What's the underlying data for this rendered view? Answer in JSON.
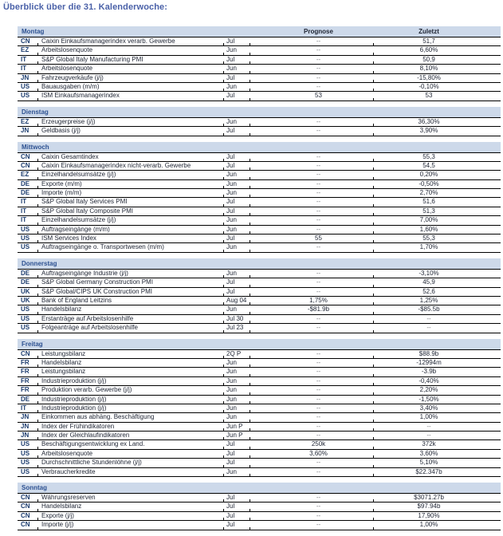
{
  "page_title": "Überblick über die 31. Kalenderwoche:",
  "colors": {
    "title-text": "#4a61a8",
    "band-bg": "#cdd9ea",
    "day-text": "#2d5191",
    "row-text": "#1e2433",
    "code-text": "#1c3c6e",
    "line": "#000000",
    "dash-text": "#76787c"
  },
  "table": {
    "empty_value": "--",
    "columns": {
      "prognose": "Prognose",
      "zuletzt": "Zuletzt"
    },
    "sections": [
      {
        "day": "Montag",
        "rows": [
          {
            "country": "CN",
            "indicator": "Caixin Einkaufsmanagerindex verarb. Gewerbe",
            "period": "Jul",
            "prognose": "--",
            "zuletzt": "51,7"
          },
          {
            "country": "EZ",
            "indicator": "Arbeitslosenquote",
            "period": "Jun",
            "prognose": "--",
            "zuletzt": "6,60%"
          },
          {
            "country": "IT",
            "indicator": "S&P Global Italy Manufacturing PMI",
            "period": "Jul",
            "prognose": "--",
            "zuletzt": "50,9"
          },
          {
            "country": "IT",
            "indicator": "Arbeitslosenquote",
            "period": "Jun",
            "prognose": "--",
            "zuletzt": "8,10%"
          },
          {
            "country": "JN",
            "indicator": "Fahrzeugverkäufe (j/j)",
            "period": "Jul",
            "prognose": "--",
            "zuletzt": "-15,80%"
          },
          {
            "country": "US",
            "indicator": "Bauausgaben (m/m)",
            "period": "Jun",
            "prognose": "--",
            "zuletzt": "-0,10%"
          },
          {
            "country": "US",
            "indicator": "ISM Einkaufsmanagerindex",
            "period": "Jul",
            "prognose": "53",
            "zuletzt": "53"
          }
        ]
      },
      {
        "day": "Dienstag",
        "rows": [
          {
            "country": "EZ",
            "indicator": "Erzeugerpreise (j/j)",
            "period": "Jun",
            "prognose": "--",
            "zuletzt": "36,30%"
          },
          {
            "country": "JN",
            "indicator": "Geldbasis (j/j)",
            "period": "Jul",
            "prognose": "--",
            "zuletzt": "3,90%"
          }
        ]
      },
      {
        "day": "Mittwoch",
        "rows": [
          {
            "country": "CN",
            "indicator": "Caixin Gesamtindex",
            "period": "Jul",
            "prognose": "--",
            "zuletzt": "55,3"
          },
          {
            "country": "CN",
            "indicator": "Caixin Einkaufsmanagerindex nicht-verarb. Gewerbe",
            "period": "Jul",
            "prognose": "--",
            "zuletzt": "54,5"
          },
          {
            "country": "EZ",
            "indicator": "Einzelhandelsumsätze (j/j)",
            "period": "Jun",
            "prognose": "--",
            "zuletzt": "0,20%"
          },
          {
            "country": "DE",
            "indicator": "Exporte (m/m)",
            "period": "Jun",
            "prognose": "--",
            "zuletzt": "-0,50%"
          },
          {
            "country": "DE",
            "indicator": "Importe (m/m)",
            "period": "Jun",
            "prognose": "--",
            "zuletzt": "2,70%"
          },
          {
            "country": "IT",
            "indicator": "S&P Global Italy Services PMI",
            "period": "Jul",
            "prognose": "--",
            "zuletzt": "51,6"
          },
          {
            "country": "IT",
            "indicator": "S&P Global Italy Composite PMI",
            "period": "Jul",
            "prognose": "--",
            "zuletzt": "51,3"
          },
          {
            "country": "IT",
            "indicator": "Einzelhandelsumsätze (j/j)",
            "period": "Jun",
            "prognose": "--",
            "zuletzt": "7,00%"
          },
          {
            "country": "US",
            "indicator": "Auftragseingänge (m/m)",
            "period": "Jun",
            "prognose": "--",
            "zuletzt": "1,60%"
          },
          {
            "country": "US",
            "indicator": "ISM Services Index",
            "period": "Jul",
            "prognose": "55",
            "zuletzt": "55,3"
          },
          {
            "country": "US",
            "indicator": "Auftragseingänge o. Transportwesen (m/m)",
            "period": "Jun",
            "prognose": "--",
            "zuletzt": "1,70%"
          }
        ]
      },
      {
        "day": "Donnerstag",
        "rows": [
          {
            "country": "DE",
            "indicator": "Auftragseingänge Industrie (j/j)",
            "period": "Jun",
            "prognose": "--",
            "zuletzt": "-3,10%"
          },
          {
            "country": "DE",
            "indicator": "S&P Global Germany Construction PMI",
            "period": "Jul",
            "prognose": "--",
            "zuletzt": "45,9"
          },
          {
            "country": "UK",
            "indicator": "S&P Global/CIPS UK Construction PMI",
            "period": "Jul",
            "prognose": "--",
            "zuletzt": "52,6"
          },
          {
            "country": "UK",
            "indicator": "Bank of England Leitzins",
            "period": "Aug 04",
            "prognose": "1,75%",
            "zuletzt": "1,25%"
          },
          {
            "country": "US",
            "indicator": "Handelsbilanz",
            "period": "Jun",
            "prognose": "-$81.9b",
            "zuletzt": "-$85.5b"
          },
          {
            "country": "US",
            "indicator": "Erstanträge auf Arbeitslosenhilfe",
            "period": "Jul 30",
            "prognose": "--",
            "zuletzt": "--"
          },
          {
            "country": "US",
            "indicator": "Folgeanträge auf Arbeitslosenhilfe",
            "period": "Jul 23",
            "prognose": "--",
            "zuletzt": "--"
          }
        ]
      },
      {
        "day": "Freitag",
        "rows": [
          {
            "country": "CN",
            "indicator": "Leistungsbilanz",
            "period": "2Q P",
            "prognose": "--",
            "zuletzt": "$88.9b"
          },
          {
            "country": "FR",
            "indicator": "Handelsbilanz",
            "period": "Jun",
            "prognose": "--",
            "zuletzt": "-12994m"
          },
          {
            "country": "FR",
            "indicator": "Leistungsbilanz",
            "period": "Jun",
            "prognose": "--",
            "zuletzt": "-3.9b"
          },
          {
            "country": "FR",
            "indicator": "Industrieproduktion (j/j)",
            "period": "Jun",
            "prognose": "--",
            "zuletzt": "-0,40%"
          },
          {
            "country": "FR",
            "indicator": "Produktion verarb. Gewerbe (j/j)",
            "period": "Jun",
            "prognose": "--",
            "zuletzt": "2,20%"
          },
          {
            "country": "DE",
            "indicator": "Industrieproduktion (j/j)",
            "period": "Jun",
            "prognose": "--",
            "zuletzt": "-1,50%"
          },
          {
            "country": "IT",
            "indicator": "Industrieproduktion (j/j)",
            "period": "Jun",
            "prognose": "--",
            "zuletzt": "3,40%"
          },
          {
            "country": "JN",
            "indicator": "Einkommen aus abhäng. Beschäftigung",
            "period": "Jun",
            "prognose": "--",
            "zuletzt": "1,00%"
          },
          {
            "country": "JN",
            "indicator": "Index der Frühindikatoren",
            "period": "Jun P",
            "prognose": "--",
            "zuletzt": "--"
          },
          {
            "country": "JN",
            "indicator": "Index der Gleichlaufindikatoren",
            "period": "Jun P",
            "prognose": "--",
            "zuletzt": "--"
          },
          {
            "country": "US",
            "indicator": "Beschäftigungsentwicklung ex Land.",
            "period": "Jul",
            "prognose": "250k",
            "zuletzt": "372k"
          },
          {
            "country": "US",
            "indicator": "Arbeitslosenquote",
            "period": "Jul",
            "prognose": "3,60%",
            "zuletzt": "3,60%"
          },
          {
            "country": "US",
            "indicator": "Durchschnittliche Stundenlöhne (j/j)",
            "period": "Jul",
            "prognose": "--",
            "zuletzt": "5,10%"
          },
          {
            "country": "US",
            "indicator": "Verbraucherkredite",
            "period": "Jun",
            "prognose": "--",
            "zuletzt": "$22.347b"
          }
        ]
      },
      {
        "day": "Sonntag",
        "rows": [
          {
            "country": "CN",
            "indicator": "Währungsreserven",
            "period": "Jul",
            "prognose": "--",
            "zuletzt": "$3071.27b"
          },
          {
            "country": "CN",
            "indicator": "Handelsbilanz",
            "period": "Jul",
            "prognose": "--",
            "zuletzt": "$97.94b"
          },
          {
            "country": "CN",
            "indicator": "Exporte (j/j)",
            "period": "Jul",
            "prognose": "--",
            "zuletzt": "17,90%"
          },
          {
            "country": "CN",
            "indicator": "Importe (j/j)",
            "period": "Jul",
            "prognose": "--",
            "zuletzt": "1,00%"
          }
        ]
      }
    ]
  }
}
